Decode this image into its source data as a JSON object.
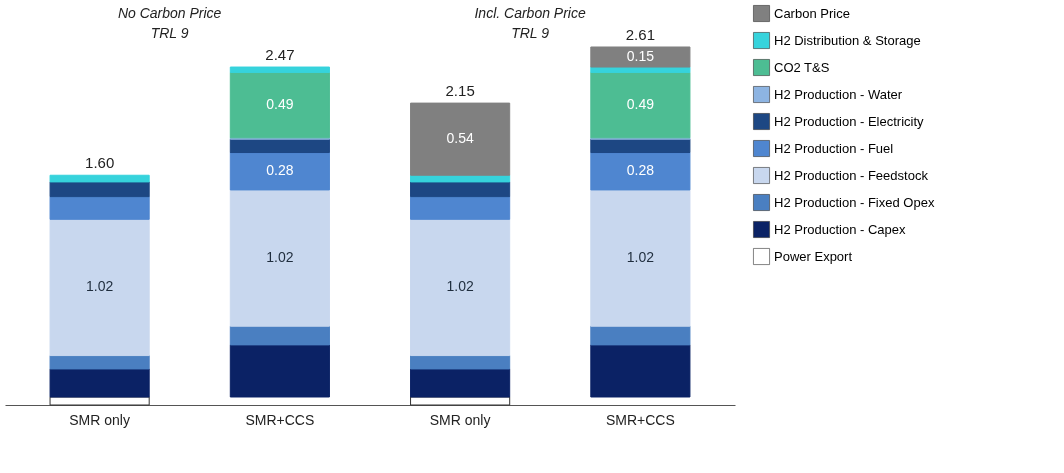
{
  "chart_data": {
    "type": "bar",
    "stacked": true,
    "categories": [
      "SMR only",
      "SMR+CCS",
      "SMR only",
      "SMR+CCS"
    ],
    "series": [
      {
        "name": "Power Export",
        "color": "#ffffff",
        "values": [
          -0.06,
          0,
          -0.06,
          0
        ],
        "value_labels": [
          null,
          null,
          null,
          null
        ]
      },
      {
        "name": "H2 Production - Capex",
        "color": "#0b2265",
        "values": [
          0.21,
          0.39,
          0.21,
          0.39
        ],
        "value_labels": [
          null,
          null,
          null,
          null
        ]
      },
      {
        "name": "H2 Production - Fixed Opex",
        "color": "#4a7fc1",
        "values": [
          0.1,
          0.14,
          0.1,
          0.14
        ],
        "value_labels": [
          null,
          null,
          null,
          null
        ]
      },
      {
        "name": "H2 Production - Feedstock",
        "color": "#c8d7ee",
        "values": [
          1.02,
          1.02,
          1.02,
          1.02
        ],
        "value_labels": [
          "1.02",
          "1.02",
          "1.02",
          "1.02"
        ]
      },
      {
        "name": "H2 Production - Fuel",
        "color": "#4f86d0",
        "values": [
          0.17,
          0.28,
          0.17,
          0.28
        ],
        "value_labels": [
          null,
          "0.28",
          null,
          "0.28"
        ]
      },
      {
        "name": "H2 Production - Electricity",
        "color": "#1d4783",
        "values": [
          0.11,
          0.1,
          0.11,
          0.1
        ],
        "value_labels": [
          null,
          null,
          null,
          null
        ]
      },
      {
        "name": "H2 Production - Water",
        "color": "#8db4e2",
        "values": [
          0,
          0.01,
          0,
          0.01
        ],
        "value_labels": [
          null,
          null,
          null,
          null
        ]
      },
      {
        "name": "CO2 T&S",
        "color": "#4dbd93",
        "values": [
          0,
          0.49,
          0,
          0.49
        ],
        "value_labels": [
          null,
          "0.49",
          null,
          "0.49"
        ]
      },
      {
        "name": "H2 Distribution & Storage",
        "color": "#36d3dc",
        "values": [
          0.05,
          0.04,
          0.05,
          0.04
        ],
        "value_labels": [
          null,
          null,
          null,
          null
        ]
      },
      {
        "name": "Carbon Price",
        "color": "#808080",
        "values": [
          0,
          0,
          0.54,
          0.15
        ],
        "value_labels": [
          null,
          null,
          "0.54",
          "0.15"
        ]
      }
    ],
    "totals": [
      "1.60",
      "2.47",
      "2.15",
      "2.61"
    ],
    "annotations": [
      "No Carbon Price\nTRL 9",
      "Incl. Carbon Price\nTRL 9"
    ],
    "legend": "right",
    "grid": false
  }
}
